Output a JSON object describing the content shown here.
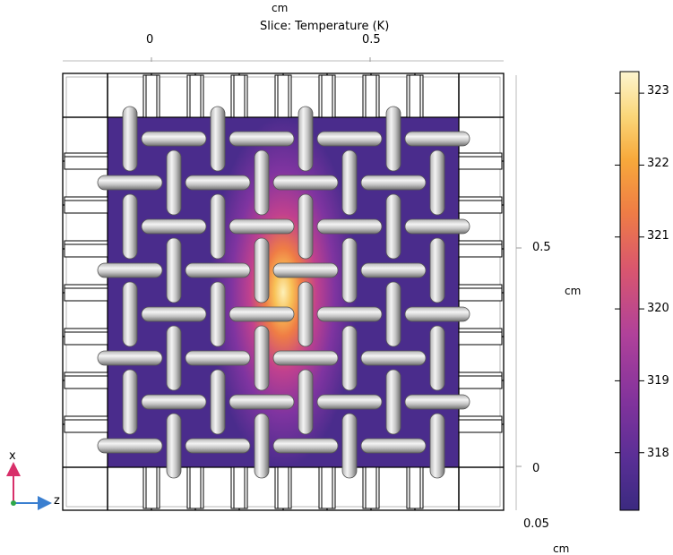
{
  "plot": {
    "title": "Slice: Temperature (K)",
    "top_axis_unit": "cm",
    "top_ticks": [
      "0",
      "0.5"
    ],
    "right_axis_unit": "cm",
    "right_ticks": [
      "0.5",
      "0"
    ],
    "depth_tick": "0.05",
    "depth_unit": "cm"
  },
  "colorbar": {
    "ticks": [
      "323",
      "322",
      "321",
      "320",
      "319",
      "318"
    ],
    "range": [
      317.2,
      323.3
    ],
    "colormap": [
      "#3b2a80",
      "#5a2f96",
      "#82339c",
      "#b0419a",
      "#d9566e",
      "#ef7d45",
      "#f7a93b",
      "#fbd77a",
      "#fdf5cf"
    ]
  },
  "triad": {
    "x_label": "x",
    "z_label": "z",
    "x_color": "#d8306a",
    "z_color": "#3a7fd0",
    "y_color": "#2ea84a"
  },
  "colors": {
    "fiber_light": "#f2f2f2",
    "fiber_dark": "#7a7a7a",
    "frame": "#000000"
  }
}
